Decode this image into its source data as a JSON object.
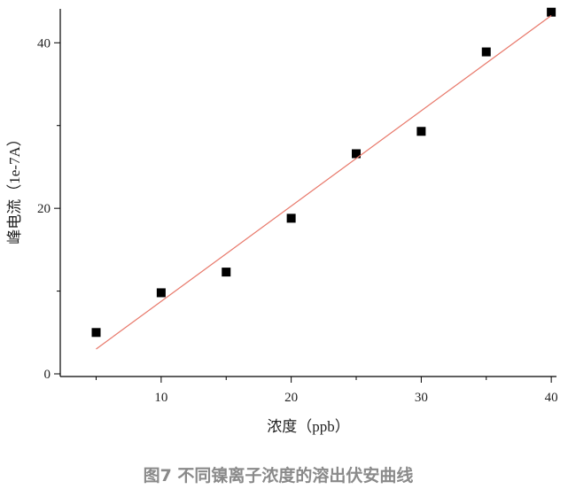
{
  "chart_data": {
    "type": "scatter",
    "x_label": "浓度（ppb）",
    "y_label": "峰电流（1e-7A）",
    "caption": "图7 不同镍离子浓度的溶出伏安曲线",
    "xlim": [
      2.24,
      40.4
    ],
    "ylim": [
      -0.32,
      44.1
    ],
    "xticks": [
      10,
      20,
      30,
      40
    ],
    "yticks": [
      0,
      20,
      40
    ],
    "xminorticks": [
      5,
      15,
      25,
      35
    ],
    "yminorticks": [
      10,
      30
    ],
    "series": [
      {
        "type": "scatter",
        "color": "#000000",
        "x": [
          5,
          10,
          15,
          20,
          25,
          30,
          35,
          40
        ],
        "values": [
          5.0,
          9.8,
          12.3,
          18.8,
          26.6,
          29.3,
          38.9,
          43.7
        ]
      },
      {
        "type": "line",
        "color": "#e8786a",
        "x": [
          5,
          40
        ],
        "values": [
          3.0,
          43.3
        ]
      }
    ]
  }
}
